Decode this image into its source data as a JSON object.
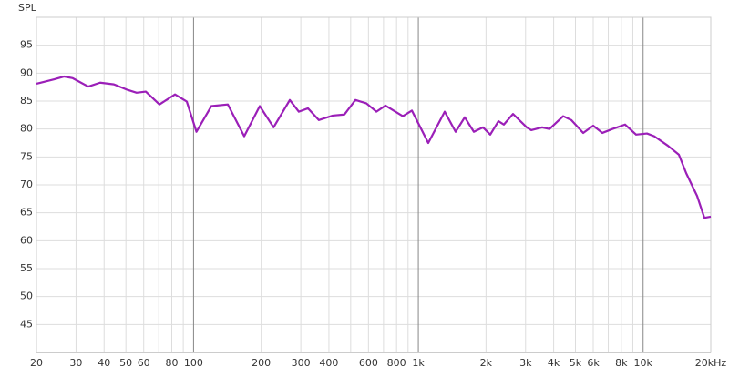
{
  "chart_data": {
    "type": "line",
    "y_label": "SPL",
    "log_x": true,
    "grid": true,
    "xlim": [
      20,
      20000
    ],
    "ylim": [
      40,
      100
    ],
    "yticks": [
      45,
      50,
      55,
      60,
      65,
      70,
      75,
      80,
      85,
      90,
      95
    ],
    "xticks": [
      20,
      30,
      40,
      50,
      60,
      80,
      100,
      200,
      300,
      400,
      600,
      800,
      {
        "value": 1000,
        "label": "1k"
      },
      {
        "value": 2000,
        "label": "2k"
      },
      {
        "value": 3000,
        "label": "3k"
      },
      {
        "value": 4000,
        "label": "4k"
      },
      {
        "value": 5000,
        "label": "5k"
      },
      {
        "value": 6000,
        "label": "6k"
      },
      {
        "value": 8000,
        "label": "8k"
      },
      {
        "value": 10000,
        "label": "10k"
      },
      {
        "value": 20000,
        "label": "20kHz"
      }
    ],
    "x_minor_grid": [
      70,
      90,
      500,
      700,
      900,
      7000,
      9000
    ],
    "series": [
      {
        "name": "SPL",
        "color": "#9b1fb8",
        "x": [
          20,
          24,
          26.5,
          29,
          34,
          38.4,
          44.2,
          50.9,
          55.8,
          61.3,
          70.5,
          82.7,
          93.3,
          103,
          120,
          142,
          168,
          197,
          227,
          268,
          294,
          323,
          361,
          416,
          469,
          525,
          587,
          651,
          714,
          853,
          936,
          1107,
          1310,
          1465,
          1609,
          1766,
          1939,
          2089,
          2272,
          2402,
          2638,
          3035,
          3180,
          3556,
          3832,
          4408,
          4795,
          5414,
          5998,
          6588,
          7296,
          8316,
          9304,
          10406,
          11212,
          12898,
          14426,
          15544,
          17390,
          18734,
          20000
        ],
        "values": [
          88.1,
          88.9,
          89.4,
          89.1,
          87.6,
          88.3,
          88.0,
          87.0,
          86.5,
          86.7,
          84.4,
          86.2,
          84.9,
          79.5,
          84.1,
          84.4,
          78.7,
          84.1,
          80.3,
          85.2,
          83.1,
          83.7,
          81.6,
          82.4,
          82.6,
          85.2,
          84.6,
          83.1,
          84.2,
          82.3,
          83.3,
          77.5,
          83.1,
          79.5,
          82.1,
          79.5,
          80.3,
          79.0,
          81.4,
          80.8,
          82.7,
          80.3,
          79.8,
          80.3,
          80.0,
          82.3,
          81.6,
          79.3,
          80.6,
          79.3,
          80.0,
          80.8,
          79.0,
          79.2,
          78.7,
          77.0,
          75.4,
          72.1,
          68.0,
          64.1,
          64.3
        ]
      }
    ]
  }
}
